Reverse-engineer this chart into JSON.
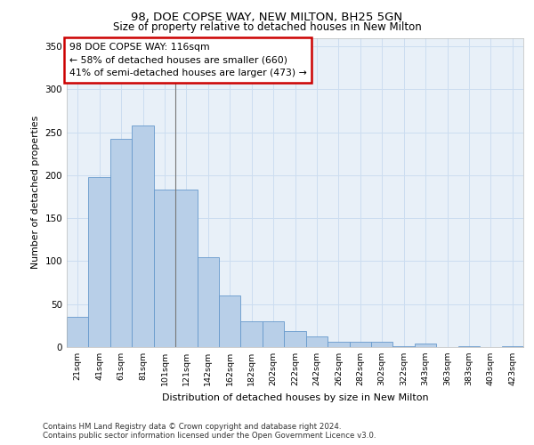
{
  "title_line1": "98, DOE COPSE WAY, NEW MILTON, BH25 5GN",
  "title_line2": "Size of property relative to detached houses in New Milton",
  "xlabel": "Distribution of detached houses by size in New Milton",
  "ylabel": "Number of detached properties",
  "categories": [
    "21sqm",
    "41sqm",
    "61sqm",
    "81sqm",
    "101sqm",
    "121sqm",
    "142sqm",
    "162sqm",
    "182sqm",
    "202sqm",
    "222sqm",
    "242sqm",
    "262sqm",
    "282sqm",
    "302sqm",
    "322sqm",
    "343sqm",
    "363sqm",
    "383sqm",
    "403sqm",
    "423sqm"
  ],
  "values": [
    35,
    198,
    242,
    258,
    183,
    183,
    105,
    60,
    30,
    30,
    19,
    12,
    6,
    6,
    6,
    1,
    4,
    0,
    1,
    0,
    1
  ],
  "bar_color_default": "#b8cfe8",
  "bar_edge_color": "#6699cc",
  "grid_color": "#ccddf0",
  "bg_color": "#e8f0f8",
  "ylim": [
    0,
    360
  ],
  "yticks": [
    0,
    50,
    100,
    150,
    200,
    250,
    300,
    350
  ],
  "annotation_box_text": "98 DOE COPSE WAY: 116sqm\n← 58% of detached houses are smaller (660)\n41% of semi-detached houses are larger (473) →",
  "annotation_box_color": "#cc0000",
  "footnote1": "Contains HM Land Registry data © Crown copyright and database right 2024.",
  "footnote2": "Contains public sector information licensed under the Open Government Licence v3.0."
}
